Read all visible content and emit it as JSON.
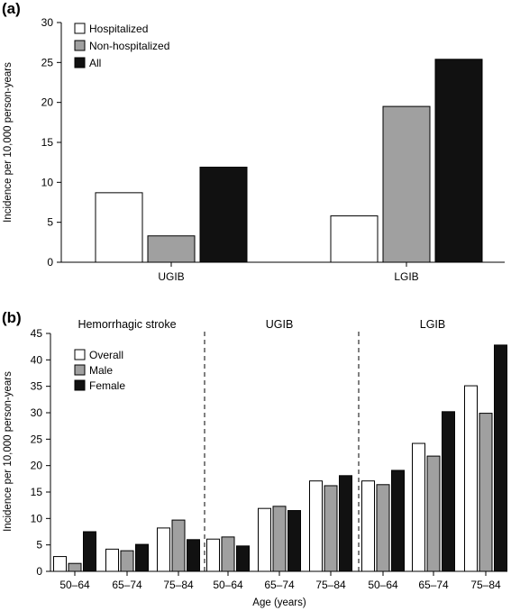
{
  "chart_data": [
    {
      "type": "bar",
      "panel_label": "(a)",
      "ylabel": "Incidence per 10,000 person-years",
      "xlabel": "",
      "ylim": [
        0,
        30
      ],
      "yticks": [
        "0",
        "5",
        "10",
        "15",
        "20",
        "25",
        "30"
      ],
      "categories": [
        "UGIB",
        "LGIB"
      ],
      "series": [
        {
          "name": "Hospitalized",
          "color": "#ffffff",
          "values": [
            8.7,
            5.8
          ]
        },
        {
          "name": "Non-hospitalized",
          "color": "#a0a0a0",
          "values": [
            3.3,
            19.5
          ]
        },
        {
          "name": "All",
          "color": "#111111",
          "values": [
            11.9,
            25.4
          ]
        }
      ],
      "legend_position": "top-left",
      "grid": false
    },
    {
      "type": "bar",
      "panel_label": "(b)",
      "ylabel": "Incidence per 10,000 person-years",
      "xlabel": "Age (years)",
      "ylim": [
        0,
        45
      ],
      "yticks": [
        "0",
        "5",
        "10",
        "15",
        "20",
        "25",
        "30",
        "35",
        "40",
        "45"
      ],
      "sections": [
        "Hemorrhagic stroke",
        "UGIB",
        "LGIB"
      ],
      "categories": [
        "50–64",
        "65–74",
        "75–84",
        "50–64",
        "65–74",
        "75–84",
        "50–64",
        "65–74",
        "75–84"
      ],
      "series": [
        {
          "name": "Overall",
          "color": "#ffffff",
          "values": [
            2.8,
            4.2,
            8.2,
            6.1,
            11.9,
            17.1,
            17.1,
            24.2,
            35.1
          ]
        },
        {
          "name": "Male",
          "color": "#a0a0a0",
          "values": [
            1.5,
            3.9,
            9.7,
            6.5,
            12.3,
            16.2,
            16.4,
            21.8,
            29.9
          ]
        },
        {
          "name": "Female",
          "color": "#111111",
          "values": [
            7.5,
            5.1,
            6.0,
            4.8,
            11.5,
            18.1,
            19.1,
            30.2,
            42.8
          ]
        }
      ],
      "legend_position": "top-left",
      "grid": false
    }
  ]
}
